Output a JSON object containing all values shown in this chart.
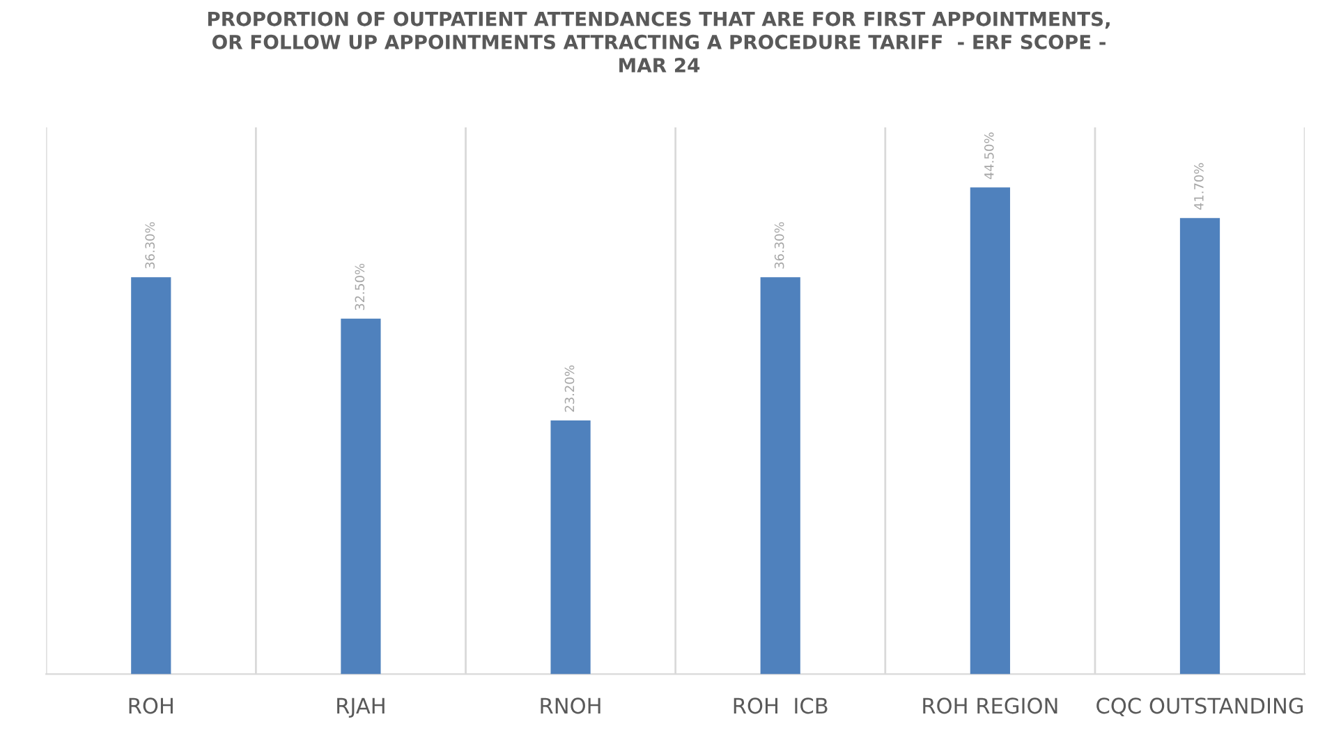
{
  "chart_data": {
    "type": "bar",
    "title": "PROPORTION OF OUTPATIENT ATTENDANCES THAT ARE FOR FIRST APPOINTMENTS,\nOR FOLLOW UP APPOINTMENTS ATTRACTING A PROCEDURE TARIFF  - ERF SCOPE -\nMAR 24",
    "categories": [
      "ROH",
      "RJAH",
      "RNOH",
      "ROH  ICB",
      "ROH REGION",
      "CQC OUTSTANDING"
    ],
    "values": [
      36.3,
      32.5,
      23.2,
      36.3,
      44.5,
      41.7
    ],
    "value_labels": [
      "36.30%",
      "32.50%",
      "23.20%",
      "36.30%",
      "44.50%",
      "41.70%"
    ],
    "color": "#4f81bd",
    "ylim": [
      0,
      50
    ],
    "grid": "x",
    "tick_labels": "x"
  }
}
